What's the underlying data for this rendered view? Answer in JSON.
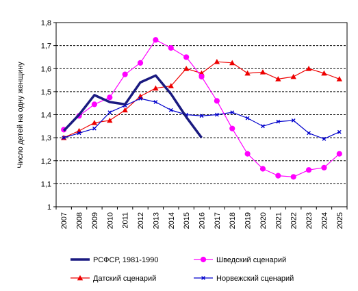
{
  "chart_data": {
    "type": "line",
    "title": "",
    "xlabel": "",
    "ylabel": "Число детей на одну женщину",
    "categories": [
      "2007",
      "2008",
      "2009",
      "2010",
      "2011",
      "2012",
      "2013",
      "2014",
      "2015",
      "2016",
      "2017",
      "2018",
      "2019",
      "2020",
      "2021",
      "2022",
      "2023",
      "2024",
      "2025"
    ],
    "yticks": [
      "1",
      "1,1",
      "1,2",
      "1,3",
      "1,4",
      "1,5",
      "1,6",
      "1,7",
      "1,8"
    ],
    "ylim": [
      1.0,
      1.8
    ],
    "grid": "horizontal dashed",
    "legend_position": "bottom",
    "series": [
      {
        "name": "РСФСР, 1981-1990",
        "color": "#1a1a80",
        "marker": "none",
        "values": [
          1.33,
          1.4,
          1.485,
          1.455,
          1.445,
          1.54,
          1.57,
          1.49,
          1.39,
          1.3,
          null,
          null,
          null,
          null,
          null,
          null,
          null,
          null,
          null
        ]
      },
      {
        "name": "Шведский сценарий",
        "color": "#ff00ff",
        "marker": "circle",
        "values": [
          1.335,
          1.395,
          1.445,
          1.475,
          1.575,
          1.625,
          1.725,
          1.69,
          1.65,
          1.565,
          1.46,
          1.34,
          1.23,
          1.165,
          1.135,
          1.13,
          1.16,
          1.17,
          1.23
        ]
      },
      {
        "name": "Датский сценарий",
        "color": "#ee0000",
        "marker": "triangle",
        "values": [
          1.3,
          1.33,
          1.365,
          1.375,
          1.42,
          1.48,
          1.515,
          1.525,
          1.6,
          1.58,
          1.63,
          1.625,
          1.58,
          1.585,
          1.555,
          1.565,
          1.6,
          1.58,
          1.555
        ]
      },
      {
        "name": "Норвежский сценарий",
        "color": "#0000cc",
        "marker": "x",
        "values": [
          1.3,
          1.32,
          1.34,
          1.41,
          1.44,
          1.47,
          1.455,
          1.42,
          1.4,
          1.395,
          1.4,
          1.41,
          1.385,
          1.35,
          1.37,
          1.375,
          1.32,
          1.295,
          1.325
        ]
      }
    ]
  }
}
